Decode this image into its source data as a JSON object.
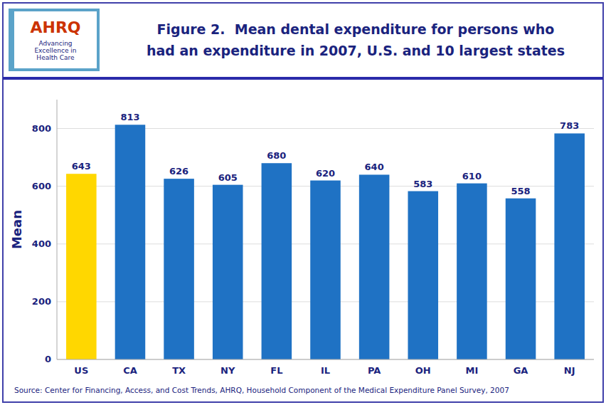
{
  "chart_data": {
    "type": "bar",
    "title": "Figure 2.  Mean dental expenditure for persons who\nhad an expenditure in 2007, U.S. and 10 largest states",
    "y_label": "Mean",
    "categories": [
      "US",
      "CA",
      "TX",
      "NY",
      "FL",
      "IL",
      "PA",
      "OH",
      "MI",
      "GA",
      "NJ"
    ],
    "values": [
      643,
      813,
      626,
      605,
      680,
      620,
      640,
      583,
      610,
      558,
      783
    ],
    "colors": [
      "#FFD700",
      "#1F72C4",
      "#1F72C4",
      "#1F72C4",
      "#1F72C4",
      "#1F72C4",
      "#1F72C4",
      "#1F72C4",
      "#1F72C4",
      "#1F72C4",
      "#1F72C4"
    ],
    "ylim": [
      0,
      900
    ],
    "yticks": [
      0,
      200,
      400,
      600,
      800
    ],
    "grid": true,
    "data_labels": true,
    "annotations": [
      "AHRQ",
      "Advancing\nExcellence in\nHealth Care",
      "Source: Center for Financing, Access, and Cost Trends, AHRQ, Household Component of the Medical Expenditure Panel Survey, 2007"
    ]
  }
}
